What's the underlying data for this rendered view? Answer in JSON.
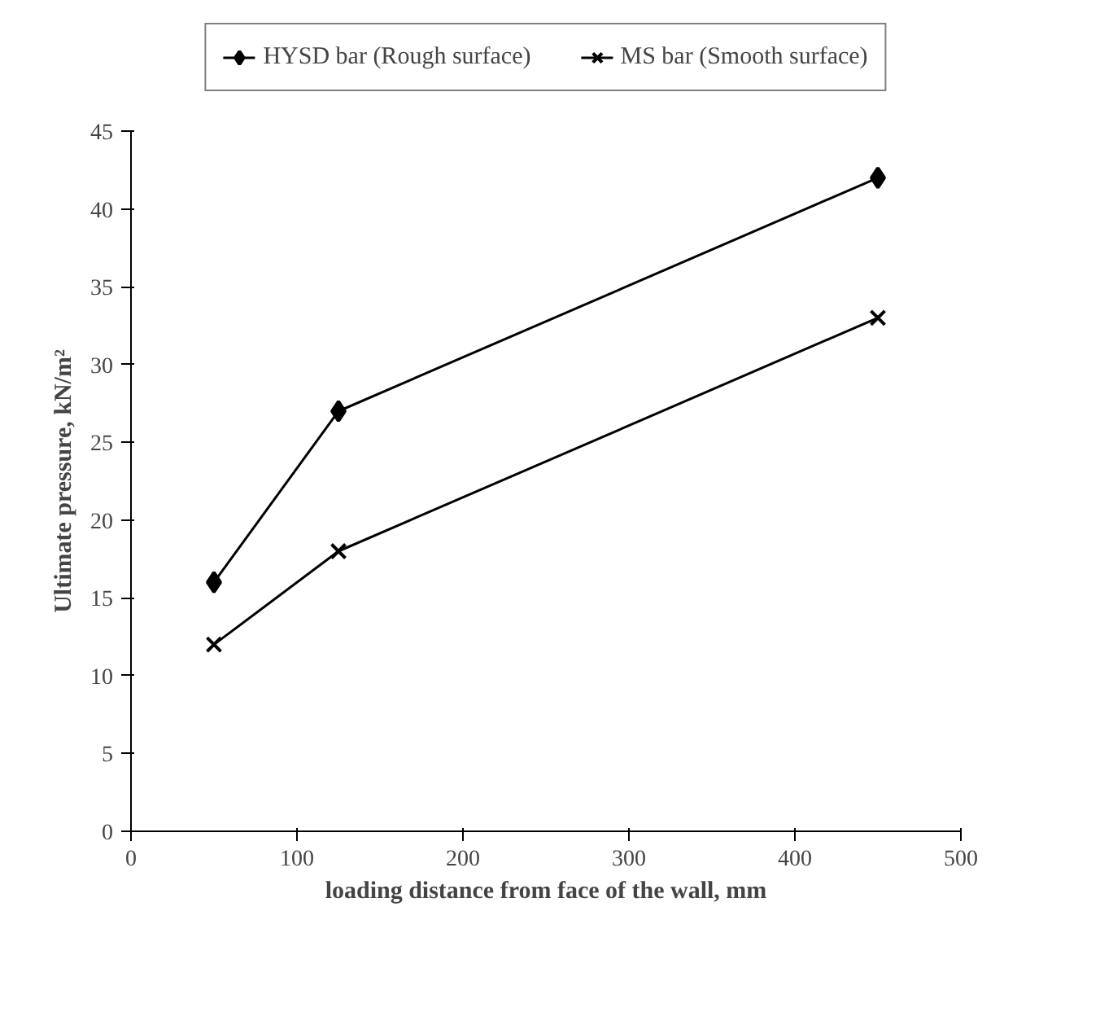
{
  "chart_data": {
    "type": "line",
    "xlabel": "loading distance from face of the wall, mm",
    "ylabel": "Ultimate pressure, kN/m²",
    "x": [
      50,
      125,
      450
    ],
    "series": [
      {
        "name": "HYSD bar (Rough surface)",
        "color": "#000000",
        "values": [
          16,
          27,
          42
        ],
        "marker": "diamond"
      },
      {
        "name": "MS bar (Smooth surface)",
        "color": "#000000",
        "values": [
          12,
          18,
          33
        ],
        "marker": "cross"
      }
    ],
    "xlim": [
      0,
      500
    ],
    "xticks": [
      0,
      100,
      200,
      300,
      400,
      500
    ],
    "ylim": [
      0,
      45
    ],
    "yticks": [
      0,
      5,
      10,
      15,
      20,
      25,
      30,
      35,
      40,
      45
    ],
    "grid": false,
    "legend": "top",
    "line_style": "solid"
  }
}
